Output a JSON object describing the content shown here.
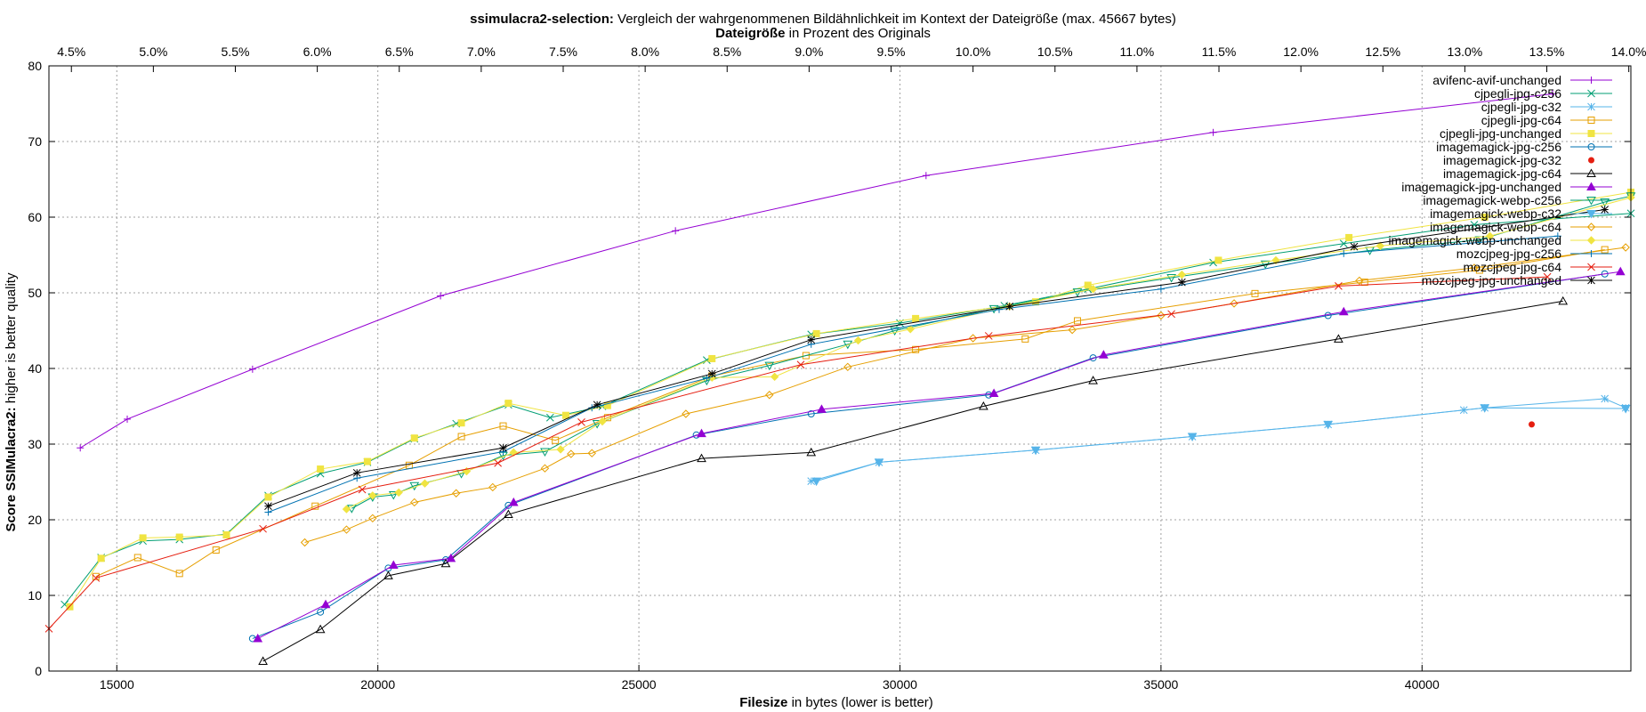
{
  "chart_data": {
    "type": "line",
    "title_bold": "ssimulacra2-selection:",
    "title_rest": " Vergleich der wahrgenommenen Bildähnlichkeit im Kontext der Dateigröße (max. 45667 bytes)",
    "x2label_bold": "Dateigröße",
    "x2label_rest": " in Prozent des Originals",
    "xlabel_bold": "Filesize",
    "xlabel_rest": " in bytes (lower is better)",
    "ylabel_bold": "Score SSIMulacra2:",
    "ylabel_rest": " higher is better quality",
    "xlim": [
      13700,
      44000
    ],
    "ylim": [
      0,
      80
    ],
    "xticks": [
      15000,
      20000,
      25000,
      30000,
      35000,
      40000
    ],
    "xtick_labels": [
      "15000",
      "20000",
      "25000",
      "30000",
      "35000",
      "40000"
    ],
    "yticks": [
      0,
      10,
      20,
      30,
      40,
      50,
      60,
      70,
      80
    ],
    "ytick_labels": [
      "0",
      "10",
      "20",
      "30",
      "40",
      "50",
      "60",
      "70",
      "80"
    ],
    "x2ticks": [
      4.5,
      5.0,
      5.5,
      6.0,
      6.5,
      7.0,
      7.5,
      8.0,
      8.5,
      9.0,
      9.5,
      10.0,
      10.5,
      11.0,
      11.5,
      12.0,
      12.5,
      13.0,
      13.5,
      14.0
    ],
    "x2tick_labels": [
      "4.5%",
      "5.0%",
      "5.5%",
      "6.0%",
      "6.5%",
      "7.0%",
      "7.5%",
      "8.0%",
      "8.5%",
      "9.0%",
      "9.5%",
      "10.0%",
      "10.5%",
      "11.0%",
      "11.5%",
      "12.0%",
      "12.5%",
      "13.0%",
      "13.5%",
      "14.0%"
    ],
    "x2_original_bytes": 314000,
    "grid": true,
    "legend_position": "top-right",
    "series": [
      {
        "name": "avifenc-avif-unchanged",
        "color": "#9400d3",
        "marker": "plus",
        "x": [
          14300,
          15200,
          17600,
          21200,
          25700,
          30500,
          36000,
          42500
        ],
        "y": [
          29.5,
          33.3,
          39.9,
          49.6,
          58.2,
          65.5,
          71.2,
          76.3
        ]
      },
      {
        "name": "cjpegli-jpg-c256",
        "color": "#009e73",
        "marker": "x",
        "x": [
          14000,
          14700,
          15500,
          16200,
          17100,
          17900,
          18900,
          19800,
          20700,
          21500,
          22500,
          23300,
          24300,
          26300,
          28300,
          30000,
          32000,
          33600,
          36000,
          38500,
          41000,
          44000
        ],
        "y": [
          8.8,
          15.0,
          17.2,
          17.4,
          18.1,
          23.2,
          26.1,
          27.6,
          30.7,
          32.7,
          35.2,
          33.5,
          35.0,
          41.1,
          44.5,
          46.0,
          48.3,
          50.5,
          54.0,
          56.5,
          59.0,
          60.5
        ]
      },
      {
        "name": "cjpegli-jpg-c32",
        "color": "#56b4e9",
        "marker": "star",
        "x": [
          28300,
          29600,
          32600,
          35600,
          38200,
          40800,
          41200,
          43500,
          43900
        ],
        "y": [
          25.1,
          27.6,
          29.2,
          31.0,
          32.6,
          34.5,
          34.8,
          36.0,
          34.8
        ]
      },
      {
        "name": "cjpegli-jpg-c64",
        "color": "#e69f00",
        "marker": "square",
        "x": [
          14600,
          15400,
          16200,
          16900,
          18800,
          20600,
          21600,
          22400,
          23400,
          24400,
          26400,
          28200,
          30300,
          32400,
          33400,
          36800,
          38900,
          41100,
          43500
        ],
        "y": [
          12.5,
          15.0,
          12.9,
          16.0,
          21.8,
          27.2,
          31.0,
          32.4,
          30.5,
          33.5,
          39.0,
          41.7,
          42.5,
          43.9,
          46.3,
          49.9,
          51.4,
          53.0,
          55.7
        ]
      },
      {
        "name": "cjpegli-jpg-unchanged",
        "color": "#f0e442",
        "marker": "box",
        "x": [
          14100,
          14700,
          15500,
          16200,
          17100,
          17900,
          18900,
          19800,
          20700,
          21600,
          22500,
          23600,
          24400,
          26400,
          28400,
          30300,
          32600,
          33600,
          36100,
          38600,
          41200,
          44000
        ],
        "y": [
          8.5,
          14.9,
          17.6,
          17.7,
          18.0,
          23.0,
          26.7,
          27.7,
          30.8,
          32.8,
          35.4,
          33.8,
          35.1,
          41.3,
          44.6,
          46.6,
          48.8,
          51.0,
          54.3,
          57.3,
          60.0,
          63.3
        ]
      },
      {
        "name": "imagemagick-jpg-c256",
        "color": "#0072b2",
        "marker": "circle",
        "x": [
          17600,
          18900,
          20200,
          21300,
          22500,
          26100,
          28300,
          31700,
          33700,
          38200,
          43500
        ],
        "y": [
          4.3,
          7.8,
          13.6,
          14.7,
          21.9,
          31.2,
          34.0,
          36.5,
          41.4,
          47.0,
          52.5
        ]
      },
      {
        "name": "imagemagick-jpg-c32",
        "color": "#e51e10",
        "marker": "dot",
        "x": [
          42100
        ],
        "y": [
          32.6
        ]
      },
      {
        "name": "imagemagick-jpg-c64",
        "color": "#000000",
        "marker": "triangle",
        "x": [
          17800,
          18900,
          20200,
          21300,
          22500,
          26200,
          28300,
          31600,
          33700,
          38400,
          42700
        ],
        "y": [
          1.3,
          5.5,
          12.6,
          14.2,
          20.7,
          28.1,
          28.9,
          35.0,
          38.4,
          43.9,
          48.9
        ]
      },
      {
        "name": "imagemagick-jpg-unchanged",
        "color": "#9400d3",
        "marker": "triangle-filled",
        "x": [
          17700,
          19000,
          20300,
          21400,
          22600,
          26200,
          28500,
          31800,
          33900,
          38500,
          43800
        ],
        "y": [
          4.3,
          8.8,
          14.0,
          14.9,
          22.3,
          31.4,
          34.6,
          36.7,
          41.8,
          47.5,
          52.8
        ]
      },
      {
        "name": "imagemagick-webp-c256",
        "color": "#009e73",
        "marker": "triangle-down",
        "x": [
          19500,
          19900,
          20300,
          20700,
          21600,
          22400,
          23200,
          24200,
          26300,
          27500,
          29000,
          29900,
          31800,
          33400,
          35200,
          37000,
          39000,
          41100,
          43500,
          44000
        ],
        "y": [
          21.5,
          23.0,
          23.3,
          24.5,
          26.1,
          28.5,
          29.0,
          32.7,
          38.4,
          40.4,
          43.2,
          45.0,
          47.9,
          50.1,
          52.0,
          53.8,
          55.6,
          57.0,
          62.0,
          62.8
        ]
      },
      {
        "name": "imagemagick-webp-c32",
        "color": "#56b4e9",
        "marker": "triangle-down-filled",
        "x": [
          28400,
          29600,
          32600,
          35600,
          38200,
          41200,
          43900
        ],
        "y": [
          25.1,
          27.6,
          29.2,
          31.0,
          32.6,
          34.8,
          34.7
        ]
      },
      {
        "name": "imagemagick-webp-c64",
        "color": "#e69f00",
        "marker": "diamond",
        "x": [
          18600,
          19400,
          19900,
          20700,
          21500,
          22200,
          23200,
          23700,
          24100,
          25900,
          27500,
          29000,
          31400,
          33300,
          35000,
          36400,
          38800,
          41000,
          43900
        ],
        "y": [
          17.0,
          18.7,
          20.2,
          22.3,
          23.5,
          24.3,
          26.8,
          28.7,
          28.8,
          34.0,
          36.5,
          40.2,
          44.0,
          45.1,
          47.0,
          48.6,
          51.6,
          53.3,
          56.0
        ]
      },
      {
        "name": "imagemagick-webp-unchanged",
        "color": "#f0e442",
        "marker": "diamond-filled",
        "x": [
          19400,
          19900,
          20400,
          20900,
          21700,
          22600,
          23500,
          24300,
          26400,
          27600,
          29200,
          30200,
          32100,
          33700,
          35400,
          37200,
          39200,
          41300,
          44000
        ],
        "y": [
          21.4,
          23.2,
          23.6,
          24.8,
          26.4,
          28.9,
          29.3,
          33.0,
          38.8,
          38.9,
          43.7,
          45.2,
          48.2,
          50.5,
          52.4,
          54.3,
          56.2,
          57.5,
          62.6
        ]
      },
      {
        "name": "mozcjpeg-jpg-c256",
        "color": "#0072b2",
        "marker": "plus",
        "x": [
          17900,
          19600,
          22400,
          24100,
          26300,
          28300,
          31900,
          35000,
          38500,
          42600
        ],
        "y": [
          21.0,
          25.5,
          29.0,
          34.8,
          38.7,
          43.2,
          47.8,
          50.5,
          55.2,
          57.5
        ]
      },
      {
        "name": "mozcjpeg-jpg-c64",
        "color": "#e51e10",
        "marker": "x",
        "x": [
          13700,
          14600,
          17800,
          19700,
          22300,
          23900,
          28100,
          31700,
          35200,
          38400,
          42400
        ],
        "y": [
          5.6,
          12.3,
          18.8,
          24.0,
          27.5,
          32.9,
          40.5,
          44.3,
          47.2,
          50.9,
          52.1
        ]
      },
      {
        "name": "mozcjpeg-jpg-unchanged",
        "color": "#000000",
        "marker": "star",
        "x": [
          17900,
          19600,
          22400,
          24200,
          26400,
          28300,
          32100,
          35400,
          38700,
          43500
        ],
        "y": [
          21.8,
          26.2,
          29.5,
          35.2,
          39.3,
          43.8,
          48.2,
          51.4,
          56.1,
          61.0
        ]
      }
    ]
  }
}
